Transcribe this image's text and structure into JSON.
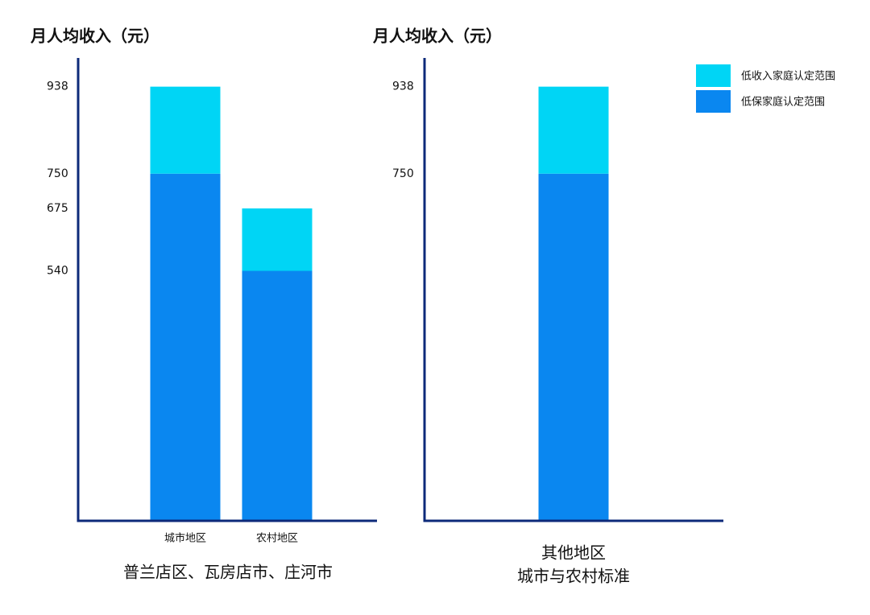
{
  "chart_data": [
    {
      "type": "bar",
      "stacked": true,
      "title": "月人均收入（元）",
      "categories": [
        "城市地区",
        "农村地区"
      ],
      "series": [
        {
          "name": "低保家庭认定范围",
          "color": "#0a87f0",
          "values": [
            750,
            540
          ]
        },
        {
          "name": "低收入家庭认定范围",
          "color": "#00d5f5",
          "values": [
            188,
            135
          ]
        }
      ],
      "ylim": [
        0,
        1000
      ],
      "yticks": [
        540,
        675,
        750,
        938
      ],
      "xlabel": [
        "普兰店区、瓦房店市、庄河市"
      ]
    },
    {
      "type": "bar",
      "stacked": true,
      "title": "月人均收入（元）",
      "categories": [
        null
      ],
      "series": [
        {
          "name": "低保家庭认定范围",
          "color": "#0a87f0",
          "values": [
            750
          ]
        },
        {
          "name": "低收入家庭认定范围",
          "color": "#00d5f5",
          "values": [
            188
          ]
        }
      ],
      "ylim": [
        0,
        1000
      ],
      "yticks": [
        750,
        938
      ],
      "xlabel": [
        "其他地区",
        "城市与农村标准"
      ],
      "legend": "top-right"
    }
  ]
}
